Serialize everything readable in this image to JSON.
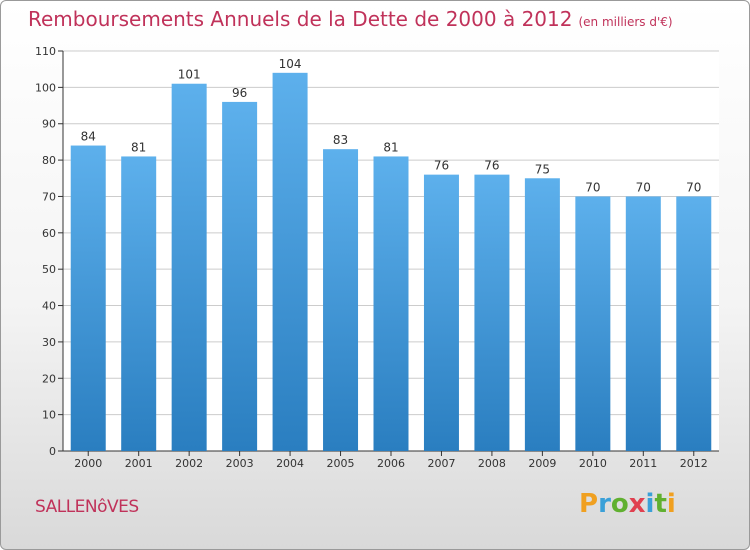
{
  "title": "Remboursements Annuels de la Dette de 2000 à 2012",
  "subtitle": "(en milliers d'€)",
  "municipality": "SALLENôVES",
  "logo_text": "Proxiti",
  "colors": {
    "title": "#c0325a",
    "bar": "#4a9ee0",
    "bar_light": "#5db0ec",
    "bar_dark": "#2a7ec0",
    "grid": "#cccccc"
  },
  "chart_data": {
    "type": "bar",
    "categories": [
      "2000",
      "2001",
      "2002",
      "2003",
      "2004",
      "2005",
      "2006",
      "2007",
      "2008",
      "2009",
      "2010",
      "2011",
      "2012"
    ],
    "values": [
      84,
      81,
      101,
      96,
      104,
      83,
      81,
      76,
      76,
      75,
      70,
      70,
      70
    ],
    "ylim": [
      0,
      110
    ],
    "yticks": [
      0,
      10,
      20,
      30,
      40,
      50,
      60,
      70,
      80,
      90,
      100,
      110
    ],
    "grid": true,
    "data_labels": true
  }
}
